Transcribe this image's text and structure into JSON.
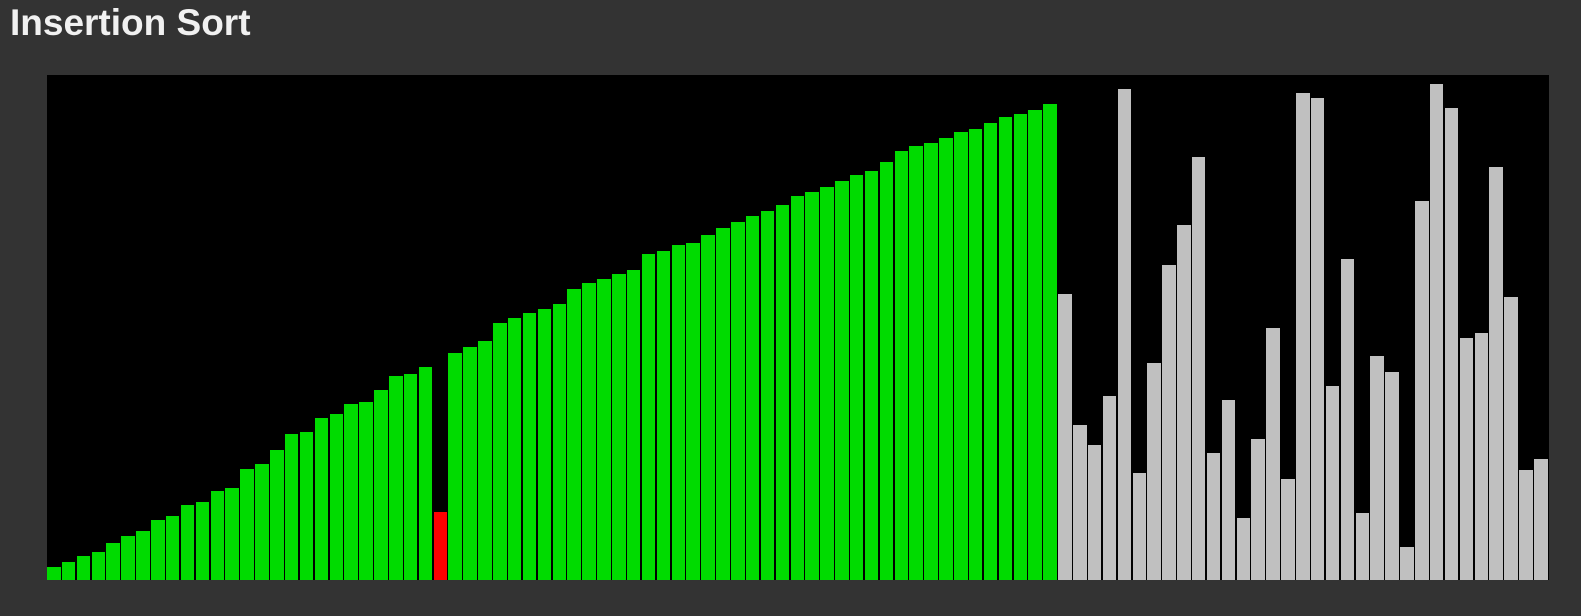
{
  "title": "Insertion Sort",
  "colors": {
    "page_background": "#333333",
    "chart_background": "#000000",
    "sorted": "#00DB00",
    "current": "#FF0000",
    "unsorted": "#C0C0C0",
    "title_text": "#F1F1F1"
  },
  "chart_data": {
    "type": "bar",
    "title": "Insertion Sort",
    "xlabel": "",
    "ylabel": "",
    "unit": "px (bar height)",
    "ylim": [
      0,
      505
    ],
    "grid": false,
    "legend_position": "none",
    "bar_count": 101,
    "current_index": 26,
    "values": [
      13,
      18,
      24,
      28,
      37,
      44,
      49,
      60,
      64,
      75,
      78,
      89,
      92,
      111,
      116,
      130,
      146,
      148,
      162,
      166,
      176,
      178,
      190,
      204,
      206,
      213,
      68,
      227,
      233,
      239,
      257,
      262,
      267,
      271,
      276,
      291,
      297,
      301,
      306,
      310,
      326,
      329,
      335,
      337,
      345,
      352,
      358,
      364,
      369,
      375,
      384,
      388,
      393,
      399,
      405,
      409,
      418,
      429,
      434,
      437,
      442,
      448,
      451,
      457,
      463,
      466,
      470,
      476,
      286,
      155,
      135,
      184,
      491,
      107,
      217,
      315,
      355,
      423,
      127,
      180,
      62,
      141,
      252,
      101,
      487,
      482,
      194,
      321,
      67,
      224,
      208,
      33,
      379,
      496,
      472,
      242,
      247,
      413,
      283,
      110,
      121
    ],
    "segments": [
      {
        "state": "sorted",
        "from": 0,
        "to": 25
      },
      {
        "state": "current",
        "from": 26,
        "to": 26
      },
      {
        "state": "sorted",
        "from": 27,
        "to": 67
      },
      {
        "state": "unsorted",
        "from": 68,
        "to": 100
      }
    ]
  }
}
